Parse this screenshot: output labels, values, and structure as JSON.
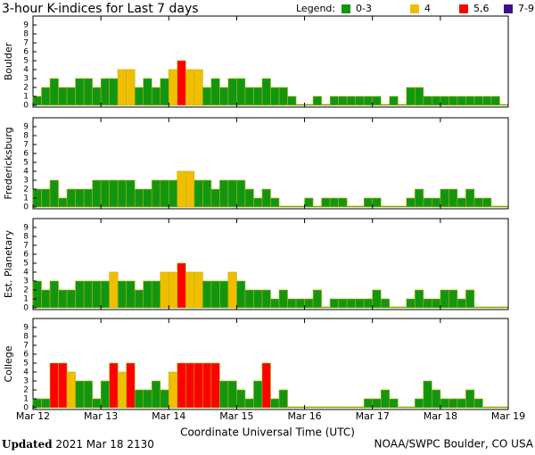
{
  "title": "3-hour K-indices for Last 7 days",
  "legend_title": "Legend:",
  "legend": [
    {
      "label": "0-3",
      "color": "#129612",
      "range": [
        0,
        3
      ]
    },
    {
      "label": "4",
      "color": "#f0be00",
      "range": [
        4,
        4
      ]
    },
    {
      "label": "5,6",
      "color": "#ff0000",
      "range": [
        5,
        6
      ]
    },
    {
      "label": "7-9",
      "color": "#40108c",
      "range": [
        7,
        9
      ]
    }
  ],
  "xlabel": "Coordinate Universal Time (UTC)",
  "xlim": [
    0,
    168
  ],
  "xticks": [
    {
      "value": 0,
      "label": "Mar 12"
    },
    {
      "value": 24,
      "label": "Mar 13"
    },
    {
      "value": 48,
      "label": "Mar 14"
    },
    {
      "value": 72,
      "label": "Mar 15"
    },
    {
      "value": 96,
      "label": "Mar 16"
    },
    {
      "value": 120,
      "label": "Mar 17"
    },
    {
      "value": 144,
      "label": "Mar 18"
    },
    {
      "value": 168,
      "label": "Mar 19"
    }
  ],
  "footer_left": {
    "label": "Updated",
    "text": "2021 Mar 18 2130"
  },
  "footer_right": "NOAA/SWPC Boulder, CO USA",
  "chart_data": [
    {
      "type": "bar",
      "ylabel": "Boulder",
      "ylim": [
        0,
        10
      ],
      "yticks": [
        0,
        1,
        2,
        3,
        4,
        5,
        6,
        7,
        8,
        9
      ],
      "values": [
        1,
        2,
        3,
        2,
        2,
        3,
        3,
        2,
        3,
        3,
        4,
        4,
        2,
        3,
        2,
        3,
        4,
        5,
        4,
        4,
        2,
        3,
        2,
        3,
        3,
        2,
        2,
        3,
        2,
        2,
        1,
        0,
        0,
        1,
        0,
        1,
        1,
        1,
        1,
        1,
        1,
        0,
        1,
        0,
        2,
        2,
        1,
        1,
        1,
        1,
        1,
        1,
        1,
        1,
        1,
        0
      ]
    },
    {
      "type": "bar",
      "ylabel": "Fredericksburg",
      "ylim": [
        0,
        10
      ],
      "yticks": [
        0,
        1,
        2,
        3,
        4,
        5,
        6,
        7,
        8,
        9
      ],
      "values": [
        2,
        2,
        3,
        1,
        2,
        2,
        2,
        3,
        3,
        3,
        3,
        3,
        2,
        2,
        3,
        3,
        3,
        4,
        4,
        3,
        3,
        2,
        3,
        3,
        3,
        2,
        1,
        2,
        1,
        0,
        0,
        0,
        1,
        0,
        1,
        1,
        1,
        0,
        0,
        1,
        1,
        0,
        0,
        0,
        1,
        2,
        1,
        1,
        2,
        2,
        1,
        2,
        1,
        1,
        0,
        0
      ]
    },
    {
      "type": "bar",
      "ylabel": "Est. Planetary",
      "ylim": [
        0,
        10
      ],
      "yticks": [
        0,
        1,
        2,
        3,
        4,
        5,
        6,
        7,
        8,
        9
      ],
      "values": [
        3,
        2,
        3,
        2,
        2,
        3,
        3,
        3,
        3,
        4,
        3,
        3,
        2,
        3,
        3,
        4,
        4,
        5,
        4,
        4,
        3,
        3,
        3,
        4,
        3,
        2,
        2,
        2,
        1,
        2,
        1,
        1,
        1,
        2,
        0,
        1,
        1,
        1,
        1,
        1,
        2,
        1,
        0,
        0,
        1,
        2,
        1,
        1,
        2,
        2,
        1,
        2,
        0,
        0,
        0,
        0
      ]
    },
    {
      "type": "bar",
      "ylabel": "College",
      "ylim": [
        0,
        10
      ],
      "yticks": [
        0,
        1,
        2,
        3,
        4,
        5,
        6,
        7,
        8,
        9
      ],
      "values": [
        1,
        1,
        5,
        5,
        4,
        3,
        3,
        1,
        3,
        5,
        4,
        5,
        2,
        2,
        3,
        2,
        4,
        5,
        5,
        5,
        5,
        5,
        3,
        3,
        2,
        1,
        3,
        5,
        1,
        2,
        0,
        0,
        0,
        0,
        0,
        0,
        0,
        0,
        0,
        1,
        1,
        2,
        1,
        0,
        0,
        1,
        3,
        2,
        1,
        1,
        1,
        2,
        1,
        0,
        0,
        0
      ]
    }
  ]
}
